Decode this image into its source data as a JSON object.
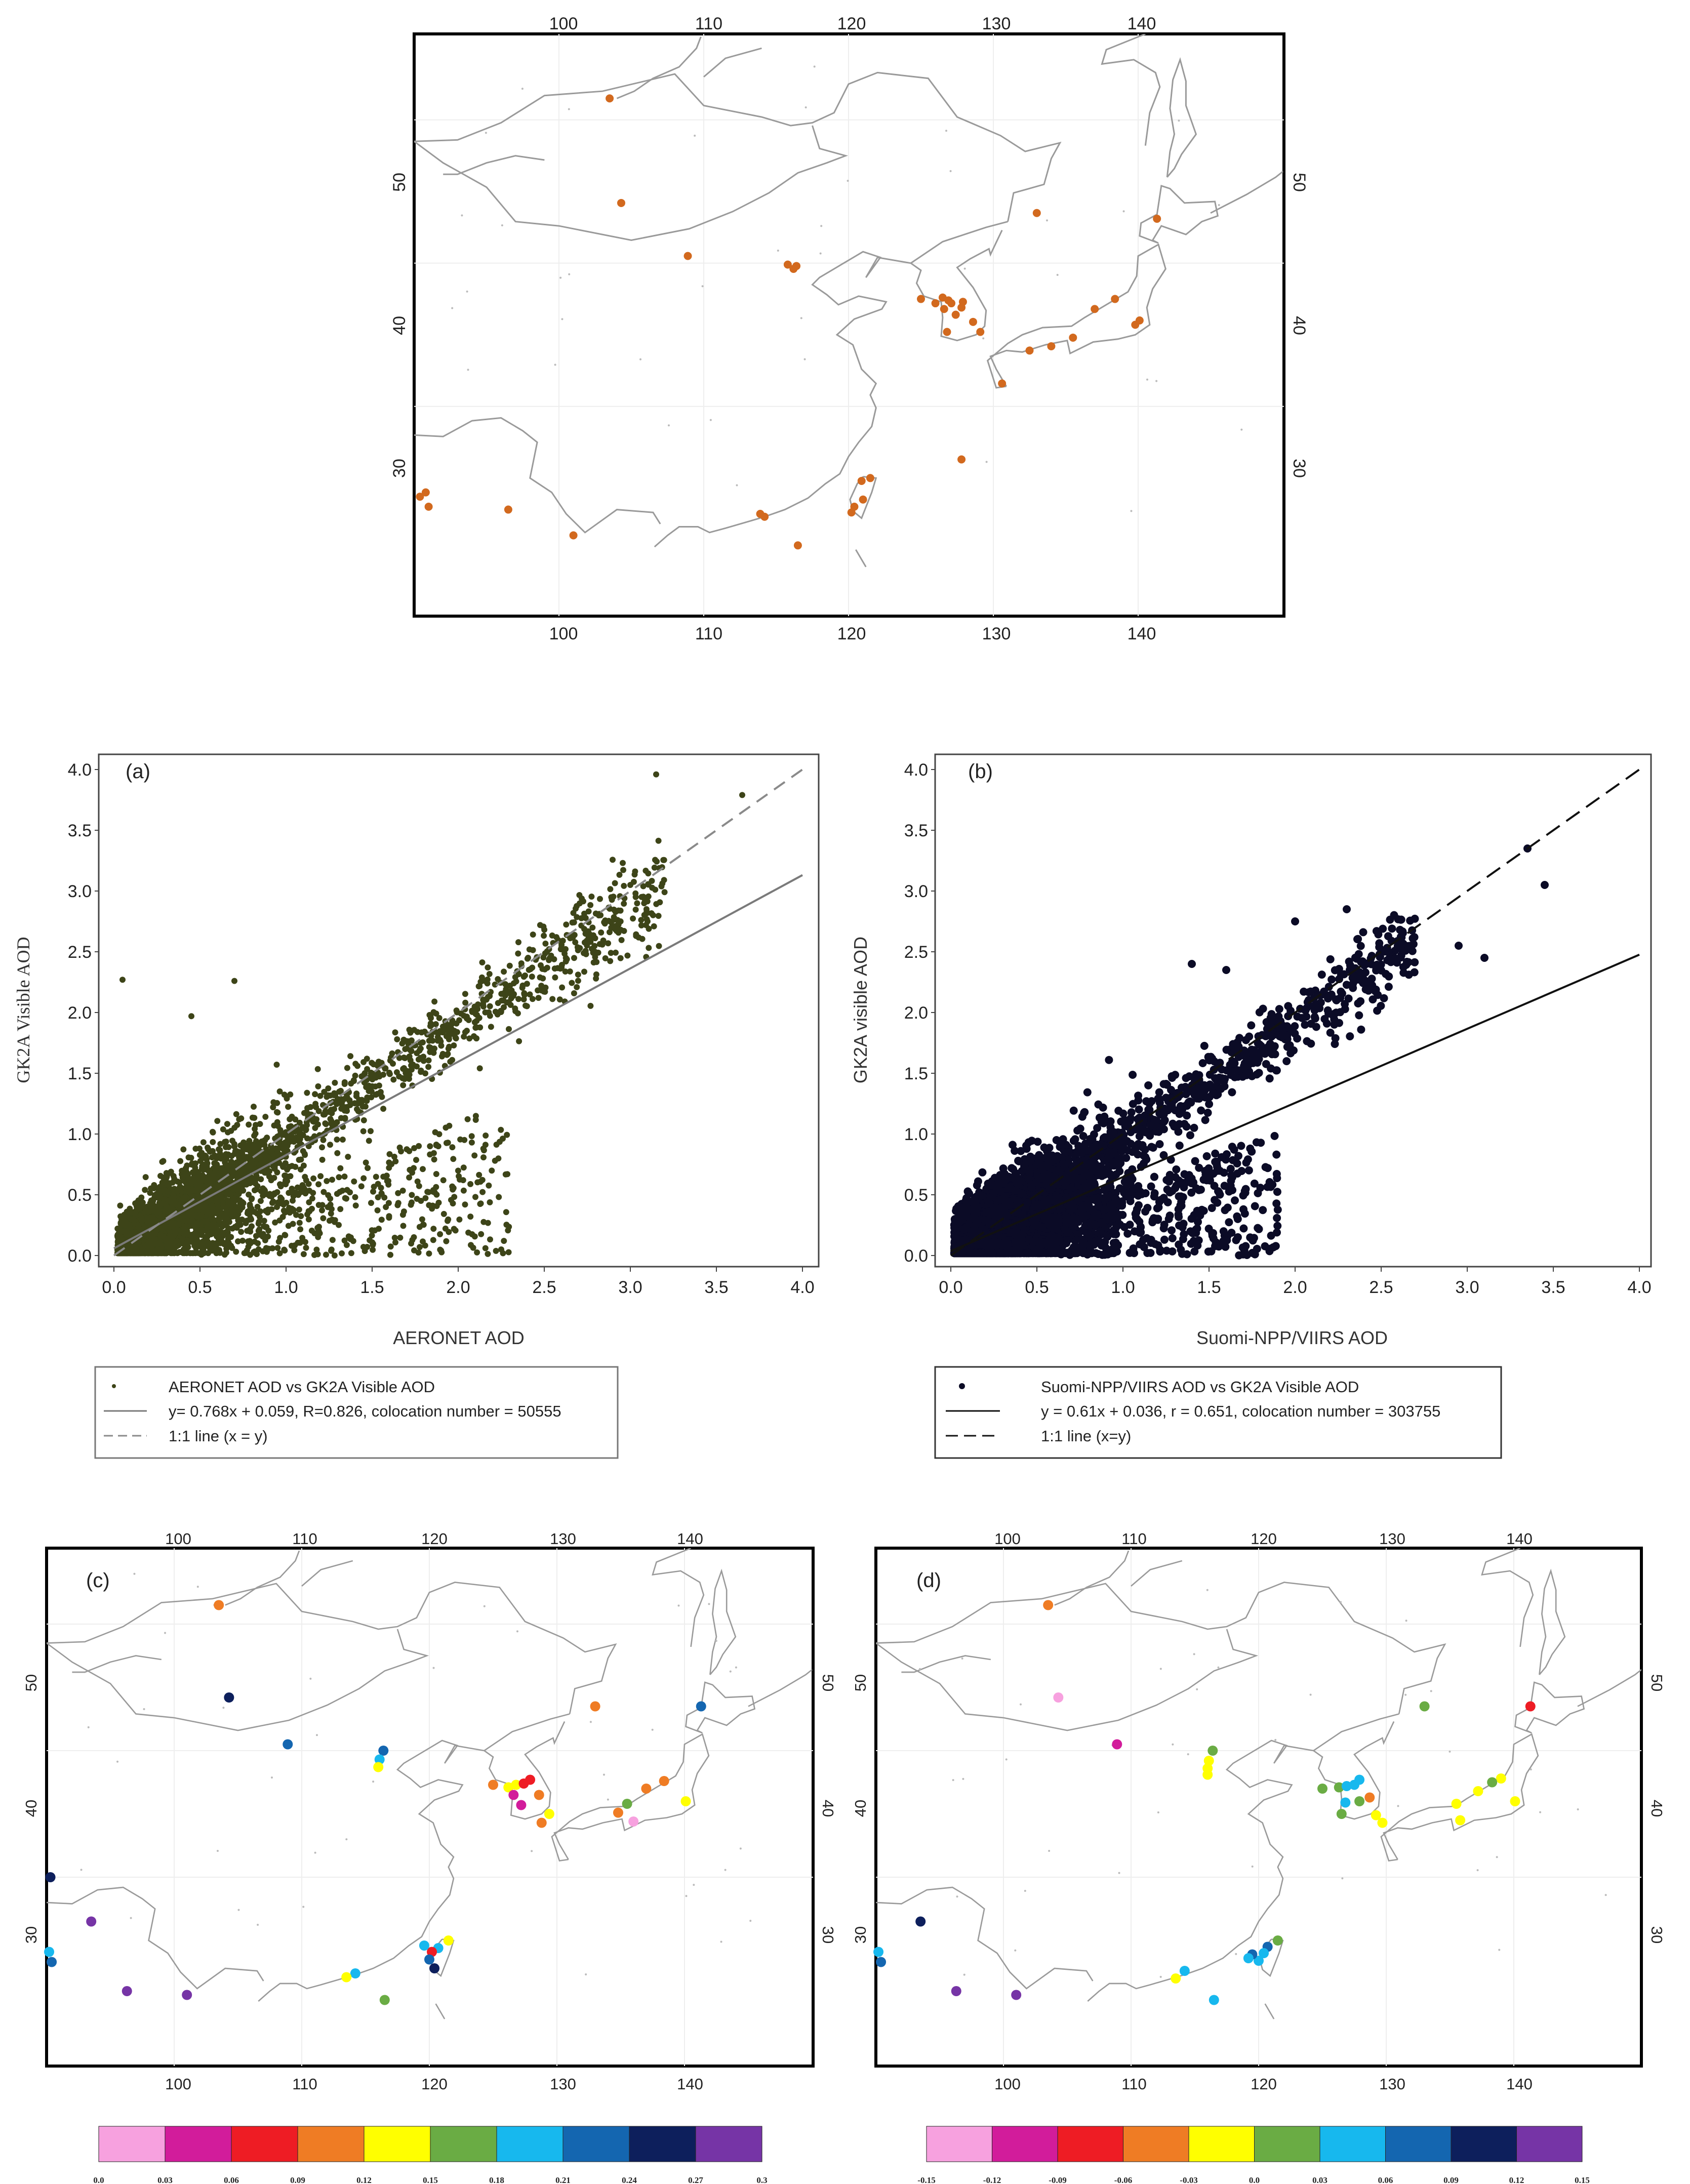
{
  "chart_data": [
    {
      "panel": "top-map",
      "type": "map",
      "lon_ticks": [
        "100",
        "110",
        "120",
        "130",
        "140"
      ],
      "lat_ticks": [
        "50",
        "40",
        "30"
      ],
      "lon_range": [
        90,
        150
      ],
      "lat_range": [
        20,
        56
      ],
      "marker_color": "#d2691e",
      "sites": [
        [
          103.5,
          51.5
        ],
        [
          104.3,
          44.2
        ],
        [
          108.9,
          40.5
        ],
        [
          115.8,
          39.9
        ],
        [
          116.4,
          39.8
        ],
        [
          116.2,
          39.6
        ],
        [
          125.0,
          37.5
        ],
        [
          126.5,
          37.6
        ],
        [
          126.9,
          37.4
        ],
        [
          127.4,
          36.4
        ],
        [
          126.0,
          37.2
        ],
        [
          127.9,
          37.3
        ],
        [
          128.6,
          35.9
        ],
        [
          126.8,
          35.2
        ],
        [
          127.8,
          36.9
        ],
        [
          129.1,
          35.2
        ],
        [
          126.6,
          36.8
        ],
        [
          127.1,
          37.2
        ],
        [
          133.0,
          43.5
        ],
        [
          141.3,
          43.1
        ],
        [
          140.1,
          36.0
        ],
        [
          139.8,
          35.7
        ],
        [
          138.4,
          37.5
        ],
        [
          137.0,
          36.8
        ],
        [
          135.5,
          34.8
        ],
        [
          134.0,
          34.2
        ],
        [
          132.5,
          33.9
        ],
        [
          130.6,
          31.6
        ],
        [
          127.8,
          26.3
        ],
        [
          121.5,
          25.0
        ],
        [
          120.9,
          24.8
        ],
        [
          121.0,
          23.5
        ],
        [
          120.4,
          23.0
        ],
        [
          120.2,
          22.6
        ],
        [
          113.9,
          22.5
        ],
        [
          114.2,
          22.3
        ],
        [
          116.5,
          20.3
        ],
        [
          101.0,
          21.0
        ],
        [
          96.5,
          22.8
        ],
        [
          90.4,
          23.7
        ],
        [
          91.0,
          23.0
        ],
        [
          90.8,
          24.0
        ]
      ]
    },
    {
      "panel": "(a)",
      "type": "scatter",
      "label": "(a)",
      "xlabel": "AERONET AOD",
      "ylabel": "GK2A Visible AOD",
      "xlim": [
        0.0,
        4.0
      ],
      "ylim": [
        0.0,
        4.0
      ],
      "ticks": [
        "0.0",
        "0.5",
        "1.0",
        "1.5",
        "2.0",
        "2.5",
        "3.0",
        "3.5",
        "4.0"
      ],
      "point_color": "#3d4418",
      "fit_line": {
        "slope": 0.768,
        "intercept": 0.059,
        "style": "solid"
      },
      "one_to_one": {
        "style": "dashed"
      },
      "legend": [
        "AERONET AOD vs GK2A Visible AOD",
        "y= 0.768x + 0.059, R=0.826, colocation number = 50555",
        "1:1 line (x = y)"
      ],
      "notable_points": [
        [
          0.05,
          2.27
        ],
        [
          0.7,
          2.26
        ],
        [
          0.45,
          1.97
        ],
        [
          3.15,
          3.96
        ],
        [
          3.65,
          3.79
        ],
        [
          3.0,
          3.05
        ],
        [
          3.1,
          2.75
        ],
        [
          2.25,
          0.05
        ],
        [
          2.05,
          1.85
        ]
      ]
    },
    {
      "panel": "(b)",
      "type": "scatter",
      "label": "(b)",
      "xlabel": "Suomi-NPP/VIIRS AOD",
      "ylabel": "GK2A visible AOD",
      "xlim": [
        0.0,
        4.0
      ],
      "ylim": [
        0.0,
        4.0
      ],
      "ticks": [
        "0.0",
        "0.5",
        "1.0",
        "1.5",
        "2.0",
        "2.5",
        "3.0",
        "3.5",
        "4.0"
      ],
      "point_color": "#0b0b26",
      "fit_line": {
        "slope": 0.61,
        "intercept": 0.036,
        "style": "solid"
      },
      "one_to_one": {
        "style": "dashed"
      },
      "legend": [
        "Suomi-NPP/VIIRS AOD vs GK2A Visible AOD",
        "y = 0.61x + 0.036, r = 0.651, colocation number = 303755",
        "1:1 line (x=y)"
      ],
      "notable_points": [
        [
          3.35,
          3.35
        ],
        [
          3.45,
          3.05
        ],
        [
          3.1,
          2.45
        ],
        [
          2.95,
          2.55
        ],
        [
          2.0,
          2.75
        ],
        [
          1.4,
          2.4
        ],
        [
          1.6,
          2.35
        ],
        [
          1.85,
          0.05
        ],
        [
          2.3,
          2.85
        ]
      ]
    },
    {
      "panel": "(c)",
      "type": "map",
      "label": "(c)",
      "lon_ticks": [
        "100",
        "110",
        "120",
        "130",
        "140"
      ],
      "lat_ticks": [
        "50",
        "40",
        "30"
      ],
      "lon_range": [
        90,
        150
      ],
      "lat_range": [
        20,
        56
      ],
      "colorbar": {
        "colors": [
          "#f7a1df",
          "#d21c9b",
          "#ee1c24",
          "#ef7c24",
          "#ffff00",
          "#6aac44",
          "#17b8ee",
          "#1466b0",
          "#0d1f5c",
          "#7634a6"
        ],
        "labels": [
          "0.0",
          "0.03",
          "0.06",
          "0.09",
          "0.12",
          "0.15",
          "0.18",
          "0.21",
          "0.24",
          "0.27",
          "0.3"
        ]
      },
      "sites": [
        {
          "lon": 103.5,
          "lat": 51.5,
          "value": 0.1
        },
        {
          "lon": 104.3,
          "lat": 44.2,
          "value": 0.26
        },
        {
          "lon": 108.9,
          "lat": 40.5,
          "value": 0.22
        },
        {
          "lon": 116.4,
          "lat": 40.0,
          "value": 0.22
        },
        {
          "lon": 116.1,
          "lat": 39.3,
          "value": 0.2
        },
        {
          "lon": 116.0,
          "lat": 38.7,
          "value": 0.13
        },
        {
          "lon": 125.0,
          "lat": 37.3,
          "value": 0.1
        },
        {
          "lon": 126.2,
          "lat": 37.1,
          "value": 0.13
        },
        {
          "lon": 126.8,
          "lat": 37.3,
          "value": 0.14
        },
        {
          "lon": 127.4,
          "lat": 37.4,
          "value": 0.08
        },
        {
          "lon": 127.9,
          "lat": 37.7,
          "value": 0.07
        },
        {
          "lon": 126.6,
          "lat": 36.5,
          "value": 0.04
        },
        {
          "lon": 127.2,
          "lat": 35.7,
          "value": 0.05
        },
        {
          "lon": 128.6,
          "lat": 36.5,
          "value": 0.1
        },
        {
          "lon": 129.4,
          "lat": 35.0,
          "value": 0.13
        },
        {
          "lon": 128.8,
          "lat": 34.3,
          "value": 0.1
        },
        {
          "lon": 133.0,
          "lat": 43.5,
          "value": 0.1
        },
        {
          "lon": 141.3,
          "lat": 43.5,
          "value": 0.22
        },
        {
          "lon": 140.1,
          "lat": 36.0,
          "value": 0.13
        },
        {
          "lon": 138.4,
          "lat": 37.6,
          "value": 0.1
        },
        {
          "lon": 137.0,
          "lat": 37.0,
          "value": 0.1
        },
        {
          "lon": 135.5,
          "lat": 35.8,
          "value": 0.16
        },
        {
          "lon": 136.0,
          "lat": 34.4,
          "value": 0.02
        },
        {
          "lon": 134.8,
          "lat": 35.1,
          "value": 0.1
        },
        {
          "lon": 121.5,
          "lat": 25.0,
          "value": 0.13
        },
        {
          "lon": 120.7,
          "lat": 24.4,
          "value": 0.2
        },
        {
          "lon": 120.2,
          "lat": 24.1,
          "value": 0.07
        },
        {
          "lon": 120.0,
          "lat": 23.5,
          "value": 0.22
        },
        {
          "lon": 120.4,
          "lat": 22.8,
          "value": 0.25
        },
        {
          "lon": 119.6,
          "lat": 24.6,
          "value": 0.2
        },
        {
          "lon": 114.2,
          "lat": 22.4,
          "value": 0.19
        },
        {
          "lon": 113.5,
          "lat": 22.1,
          "value": 0.13
        },
        {
          "lon": 116.5,
          "lat": 20.3,
          "value": 0.16
        },
        {
          "lon": 101.0,
          "lat": 20.7,
          "value": 0.29
        },
        {
          "lon": 96.3,
          "lat": 21.0,
          "value": 0.29
        },
        {
          "lon": 90.3,
          "lat": 30.0,
          "value": 0.26
        },
        {
          "lon": 93.5,
          "lat": 26.5,
          "value": 0.29
        },
        {
          "lon": 90.4,
          "lat": 23.3,
          "value": 0.22
        },
        {
          "lon": 90.2,
          "lat": 24.1,
          "value": 0.2
        }
      ]
    },
    {
      "panel": "(d)",
      "type": "map",
      "label": "(d)",
      "lon_ticks": [
        "100",
        "110",
        "120",
        "130",
        "140"
      ],
      "lat_ticks": [
        "50",
        "40",
        "30"
      ],
      "lon_range": [
        90,
        150
      ],
      "lat_range": [
        20,
        56
      ],
      "colorbar": {
        "colors": [
          "#f7a1df",
          "#d21c9b",
          "#ee1c24",
          "#ef7c24",
          "#ffff00",
          "#6aac44",
          "#17b8ee",
          "#1466b0",
          "#0d1f5c",
          "#7634a6"
        ],
        "labels": [
          "-0.15",
          "-0.12",
          "-0.09",
          "-0.06",
          "-0.03",
          "0.0",
          "0.03",
          "0.06",
          "0.09",
          "0.12",
          "0.15"
        ]
      },
      "sites": [
        {
          "lon": 103.5,
          "lat": 51.5,
          "value": -0.05
        },
        {
          "lon": 104.3,
          "lat": 44.2,
          "value": -0.14
        },
        {
          "lon": 108.9,
          "lat": 40.5,
          "value": -0.11
        },
        {
          "lon": 116.4,
          "lat": 40.0,
          "value": 0.01
        },
        {
          "lon": 116.1,
          "lat": 39.2,
          "value": -0.02
        },
        {
          "lon": 116.0,
          "lat": 38.6,
          "value": -0.02
        },
        {
          "lon": 116.0,
          "lat": 38.1,
          "value": -0.02
        },
        {
          "lon": 125.0,
          "lat": 37.0,
          "value": 0.01
        },
        {
          "lon": 126.3,
          "lat": 37.1,
          "value": 0.01
        },
        {
          "lon": 126.9,
          "lat": 37.2,
          "value": 0.04
        },
        {
          "lon": 127.5,
          "lat": 37.3,
          "value": 0.04
        },
        {
          "lon": 127.9,
          "lat": 37.7,
          "value": 0.04
        },
        {
          "lon": 126.8,
          "lat": 35.9,
          "value": 0.04
        },
        {
          "lon": 127.9,
          "lat": 36.0,
          "value": 0.01
        },
        {
          "lon": 128.7,
          "lat": 36.3,
          "value": -0.05
        },
        {
          "lon": 126.5,
          "lat": 35.0,
          "value": 0.01
        },
        {
          "lon": 129.2,
          "lat": 34.9,
          "value": -0.02
        },
        {
          "lon": 129.7,
          "lat": 34.3,
          "value": -0.02
        },
        {
          "lon": 133.0,
          "lat": 43.5,
          "value": 0.01
        },
        {
          "lon": 141.3,
          "lat": 43.5,
          "value": -0.08
        },
        {
          "lon": 140.1,
          "lat": 36.0,
          "value": -0.02
        },
        {
          "lon": 139.0,
          "lat": 37.8,
          "value": -0.02
        },
        {
          "lon": 138.3,
          "lat": 37.5,
          "value": 0.01
        },
        {
          "lon": 137.2,
          "lat": 36.8,
          "value": -0.02
        },
        {
          "lon": 135.5,
          "lat": 35.8,
          "value": -0.02
        },
        {
          "lon": 135.8,
          "lat": 34.5,
          "value": -0.02
        },
        {
          "lon": 121.5,
          "lat": 25.0,
          "value": 0.01
        },
        {
          "lon": 120.7,
          "lat": 24.5,
          "value": 0.06
        },
        {
          "lon": 120.4,
          "lat": 24.0,
          "value": 0.04
        },
        {
          "lon": 120.0,
          "lat": 23.4,
          "value": 0.04
        },
        {
          "lon": 119.5,
          "lat": 23.9,
          "value": 0.06
        },
        {
          "lon": 119.2,
          "lat": 23.6,
          "value": 0.04
        },
        {
          "lon": 116.5,
          "lat": 20.3,
          "value": 0.04
        },
        {
          "lon": 114.2,
          "lat": 22.6,
          "value": 0.04
        },
        {
          "lon": 113.5,
          "lat": 22.0,
          "value": -0.02
        },
        {
          "lon": 101.0,
          "lat": 20.7,
          "value": 0.13
        },
        {
          "lon": 96.3,
          "lat": 21.0,
          "value": 0.13
        },
        {
          "lon": 93.5,
          "lat": 26.5,
          "value": 0.1
        },
        {
          "lon": 90.4,
          "lat": 23.3,
          "value": 0.06
        },
        {
          "lon": 90.2,
          "lat": 24.1,
          "value": 0.05
        }
      ]
    }
  ]
}
